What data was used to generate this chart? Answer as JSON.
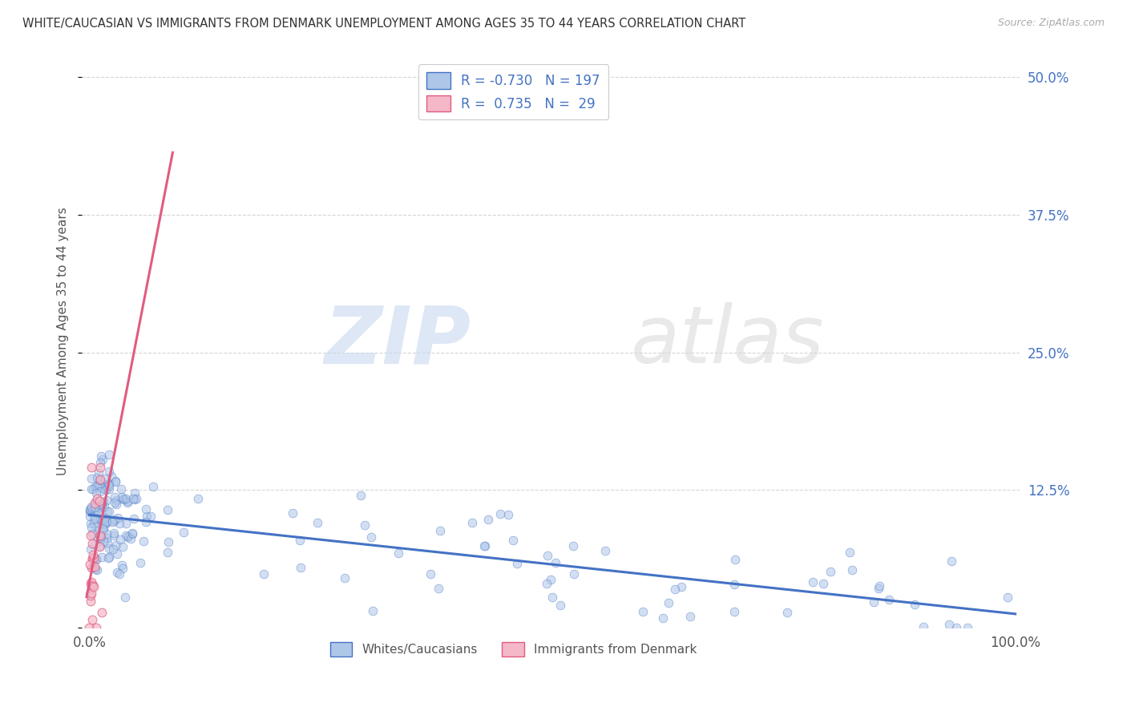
{
  "title": "WHITE/CAUCASIAN VS IMMIGRANTS FROM DENMARK UNEMPLOYMENT AMONG AGES 35 TO 44 YEARS CORRELATION CHART",
  "source": "Source: ZipAtlas.com",
  "ylabel": "Unemployment Among Ages 35 to 44 years",
  "watermark_zip": "ZIP",
  "watermark_atlas": "atlas",
  "yticks": [
    0,
    0.125,
    0.25,
    0.375,
    0.5
  ],
  "ytick_labels": [
    "",
    "12.5%",
    "25.0%",
    "37.5%",
    "50.0%"
  ],
  "legend_top": [
    {
      "label": "R = -0.730   N = 197",
      "fc": "#aec6e8",
      "ec": "#4472c4"
    },
    {
      "label": "R =  0.735   N =  29",
      "fc": "#f4b8c8",
      "ec": "#e05c80"
    }
  ],
  "legend_bottom": [
    "Whites/Caucasians",
    "Immigrants from Denmark"
  ],
  "blue_fc": "#aec6e8",
  "blue_ec": "#4472c4",
  "pink_fc": "#f4b8c8",
  "pink_ec": "#e05c80",
  "blue_line_color": "#4472c4",
  "pink_line_color": "#e05c80",
  "xmin": 0.0,
  "xmax": 1.0,
  "ymin": 0.0,
  "ymax": 0.52,
  "blue_intercept": 0.102,
  "blue_slope": -0.082,
  "pink_intercept": 0.03,
  "pink_slope": 5.5
}
